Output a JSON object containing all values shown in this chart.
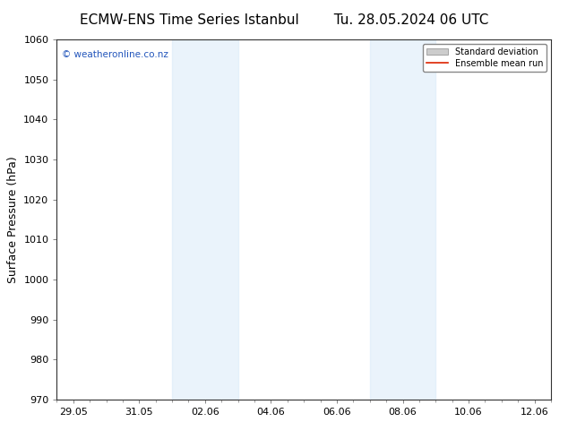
{
  "title": "ECMW-ENS Time Series Istanbul",
  "title2": "Tu. 28.05.2024 06 UTC",
  "ylabel": "Surface Pressure (hPa)",
  "ylim": [
    970,
    1060
  ],
  "yticks": [
    970,
    980,
    990,
    1000,
    1010,
    1020,
    1030,
    1040,
    1050,
    1060
  ],
  "xtick_labels": [
    "29.05",
    "31.05",
    "02.06",
    "04.06",
    "06.06",
    "08.06",
    "10.06",
    "12.06"
  ],
  "xtick_positions": [
    0,
    2,
    4,
    6,
    8,
    10,
    12,
    14
  ],
  "xlim": [
    -0.5,
    14.5
  ],
  "shaded_bands": [
    {
      "x_start": 3.0,
      "x_end": 5.0
    },
    {
      "x_start": 9.0,
      "x_end": 11.0
    }
  ],
  "shade_color": "#d6e9f8",
  "shade_alpha": 0.5,
  "background_color": "#ffffff",
  "watermark": "© weatheronline.co.nz",
  "watermark_color": "#2255bb",
  "legend_std_label": "Standard deviation",
  "legend_mean_label": "Ensemble mean run",
  "legend_std_color": "#cccccc",
  "legend_mean_color": "#dd2200",
  "title_fontsize": 11,
  "axis_fontsize": 8,
  "ylabel_fontsize": 9
}
